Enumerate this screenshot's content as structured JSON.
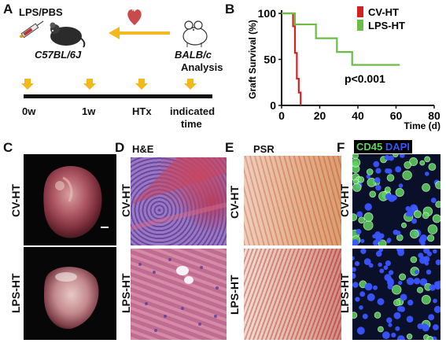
{
  "panel_a": {
    "letter": "A",
    "treatment": "LPS/PBS",
    "donor_strain": "C57BL/6J",
    "recipient_strain": "BALB/c",
    "analysis": "Analysis",
    "timeline_labels": [
      "0w",
      "1w",
      "HTx",
      "indicated",
      "time"
    ],
    "syringe_icon": "syringe-icon",
    "mouse_icon": "mouse-icon",
    "heart_icon": "heart-icon",
    "arrow_color": "#f2b81c"
  },
  "panel_b": {
    "letter": "B",
    "chart_data": {
      "type": "line",
      "xlabel": "Time (d)",
      "ylabel": "Graft Survival (%)",
      "xlim": [
        0,
        80
      ],
      "ylim": [
        0,
        100
      ],
      "xticks": [
        0,
        20,
        40,
        60,
        80
      ],
      "yticks": [
        0,
        50,
        100
      ],
      "legend_position": "top-right",
      "annotation": "p<0.001",
      "series": [
        {
          "name": "CV-HT",
          "color": "#d42020",
          "step": true,
          "x": [
            0,
            6,
            6,
            7,
            7,
            8,
            8,
            9,
            9,
            10,
            10
          ],
          "y": [
            100,
            100,
            86,
            86,
            57,
            57,
            29,
            29,
            14,
            14,
            0
          ]
        },
        {
          "name": "LPS-HT",
          "color": "#6cbd45",
          "step": true,
          "x": [
            0,
            7,
            7,
            18,
            18,
            29,
            29,
            37,
            37,
            62
          ],
          "y": [
            100,
            100,
            88,
            88,
            73,
            73,
            58,
            58,
            44,
            44
          ]
        }
      ]
    }
  },
  "panel_c": {
    "letter": "C",
    "row_labels": [
      "CV-HT",
      "LPS-HT"
    ]
  },
  "panel_d": {
    "letter": "D",
    "stain": "H&E",
    "row_labels": [
      "CV-HT",
      "LPS-HT"
    ]
  },
  "panel_e": {
    "letter": "E",
    "stain": "PSR",
    "row_labels": [
      "CV-HT",
      "LPS-HT"
    ]
  },
  "panel_f": {
    "letter": "F",
    "stain_cd45": "CD45",
    "stain_dapi": "DAPI",
    "row_labels": [
      "CV-HT",
      "LPS-HT"
    ],
    "cd45_color": "#5fd35f",
    "dapi_color": "#3a55ff"
  }
}
